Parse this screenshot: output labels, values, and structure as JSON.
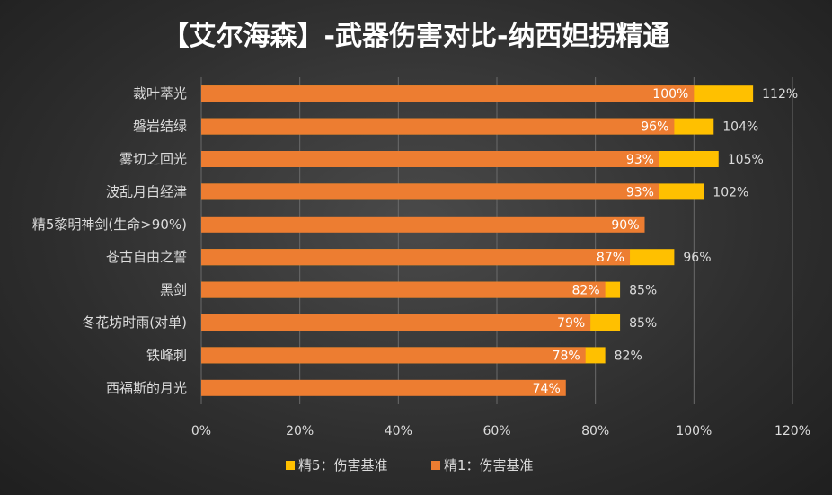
{
  "chart_data": {
    "type": "bar",
    "orientation": "horizontal",
    "stacked": "overlay",
    "title": "【艾尔海森】-武器伤害对比-纳西妲拐精通",
    "categories": [
      "裁叶萃光",
      "磐岩结绿",
      "雾切之回光",
      "波乱月白经津",
      "精5黎明神剑(生命>90%)",
      "苍古自由之誓",
      "黑剑",
      "冬花坊时雨(对单)",
      "铁峰刺",
      "西福斯的月光"
    ],
    "series": [
      {
        "name": "精5：伤害基准",
        "color": "#ffc000",
        "values": [
          112,
          104,
          105,
          102,
          null,
          96,
          85,
          85,
          82,
          null
        ],
        "labels": [
          "112%",
          "104%",
          "105%",
          "102%",
          "",
          "96%",
          "85%",
          "85%",
          "82%",
          ""
        ]
      },
      {
        "name": "精1：伤害基准",
        "color": "#ed7d31",
        "values": [
          100,
          96,
          93,
          93,
          90,
          87,
          82,
          79,
          78,
          74
        ],
        "labels": [
          "100%",
          "96%",
          "93%",
          "93%",
          "90%",
          "87%",
          "82%",
          "79%",
          "78%",
          "74%"
        ]
      }
    ],
    "xlim": [
      0,
      120
    ],
    "xticks": [
      0,
      20,
      40,
      60,
      80,
      100,
      120
    ],
    "xtick_labels": [
      "0%",
      "20%",
      "40%",
      "60%",
      "80%",
      "100%",
      "120%"
    ],
    "grid": true,
    "legend_position": "bottom"
  }
}
